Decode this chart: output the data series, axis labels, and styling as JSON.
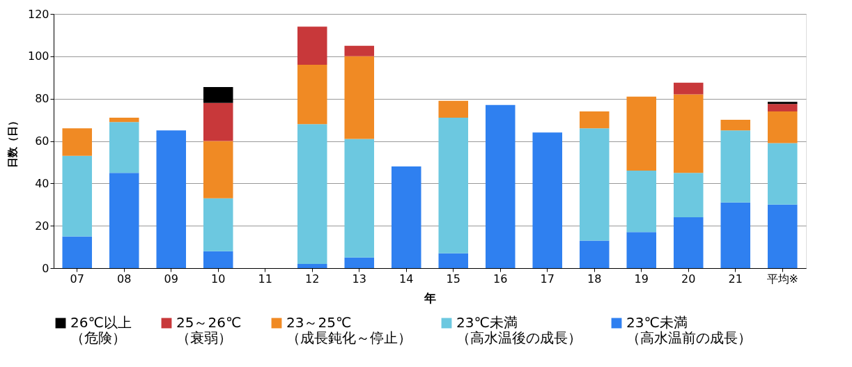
{
  "chart_data": {
    "type": "bar",
    "stacked": true,
    "xlabel": "年",
    "ylabel": "日数（日）",
    "categories": [
      "07",
      "08",
      "09",
      "10",
      "11",
      "12",
      "13",
      "14",
      "15",
      "16",
      "17",
      "18",
      "19",
      "20",
      "21",
      "平均※"
    ],
    "series": [
      {
        "name": "23℃未満（高水温前の成長）",
        "color": "#2f80f0",
        "values": [
          15,
          45,
          65,
          8,
          null,
          2,
          5,
          48,
          7,
          77,
          64,
          13,
          17,
          24,
          31,
          30
        ]
      },
      {
        "name": "23℃未満（高水温後の成長）",
        "color": "#6cc8e0",
        "values": [
          38,
          24,
          null,
          25,
          null,
          66,
          56,
          null,
          64,
          null,
          null,
          53,
          29,
          21,
          34,
          29
        ]
      },
      {
        "name": "23～25℃（成長鈍化～停止）",
        "color": "#f08a24",
        "values": [
          13,
          2,
          null,
          27,
          null,
          28,
          39,
          null,
          8,
          null,
          null,
          8,
          35,
          37,
          5,
          15
        ]
      },
      {
        "name": "25～26℃（衰弱）",
        "color": "#c8383a",
        "values": [
          null,
          null,
          null,
          18,
          null,
          18,
          5,
          null,
          null,
          null,
          null,
          null,
          null,
          5.5,
          null,
          3.5
        ]
      },
      {
        "name": "26℃以上（危険）",
        "color": "#000000",
        "values": [
          null,
          null,
          null,
          7.5,
          null,
          null,
          null,
          null,
          null,
          null,
          null,
          null,
          null,
          null,
          null,
          1
        ]
      }
    ],
    "ylim": [
      0,
      120
    ],
    "yticks": [
      0,
      20,
      40,
      60,
      80,
      100,
      120
    ],
    "grid": "y",
    "legend": "bottom"
  }
}
